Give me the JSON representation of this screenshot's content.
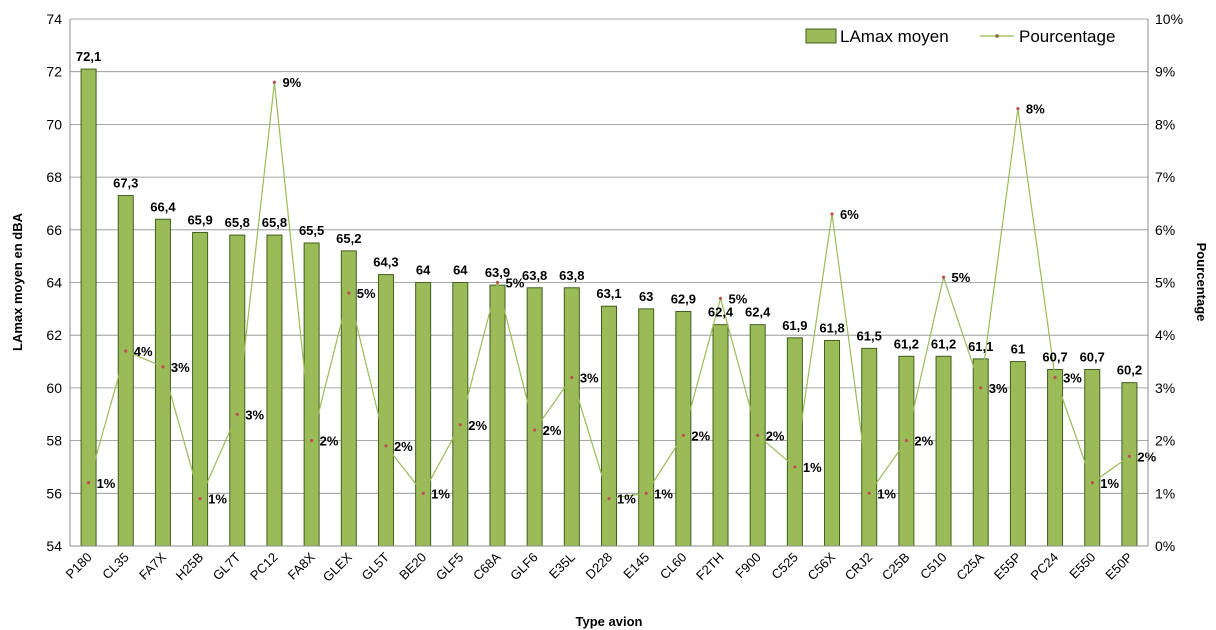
{
  "chart_data": {
    "type": "bar",
    "categories": [
      "P180",
      "CL35",
      "FA7X",
      "H25B",
      "GL7T",
      "PC12",
      "FA8X",
      "GLEX",
      "GL5T",
      "BE20",
      "GLF5",
      "C68A",
      "GLF6",
      "E35L",
      "D228",
      "E145",
      "CL60",
      "F2TH",
      "F900",
      "C525",
      "C56X",
      "CRJ2",
      "C25B",
      "C510",
      "C25A",
      "E55P",
      "PC24",
      "E550",
      "E50P"
    ],
    "series": [
      {
        "name": "LAmax moyen",
        "type": "bar",
        "axis": "left",
        "values": [
          72.1,
          67.3,
          66.4,
          65.9,
          65.8,
          65.8,
          65.5,
          65.2,
          64.3,
          64,
          64,
          63.9,
          63.8,
          63.8,
          63.1,
          63,
          62.9,
          62.4,
          62.4,
          61.9,
          61.8,
          61.5,
          61.2,
          61.2,
          61.1,
          61,
          60.7,
          60.7,
          60.2
        ],
        "labels": [
          "72,1",
          "67,3",
          "66,4",
          "65,9",
          "65,8",
          "65,8",
          "65,5",
          "65,2",
          "64,3",
          "64",
          "64",
          "63,9",
          "63,8",
          "63,8",
          "63,1",
          "63",
          "62,9",
          "62,4",
          "62,4",
          "61,9",
          "61,8",
          "61,5",
          "61,2",
          "61,2",
          "61,1",
          "61",
          "60,7",
          "60,7",
          "60,2"
        ],
        "color": "#9bbb59",
        "border": "#3f5f1f"
      },
      {
        "name": "Pourcentage",
        "type": "line",
        "axis": "right",
        "values": [
          1.2,
          3.7,
          3.4,
          0.9,
          2.5,
          8.8,
          2.0,
          4.8,
          1.9,
          1.0,
          2.3,
          5.0,
          2.2,
          3.2,
          0.9,
          1.0,
          2.1,
          4.7,
          2.1,
          1.5,
          6.3,
          1.0,
          2.0,
          5.1,
          3.0,
          8.3,
          3.2,
          1.2,
          1.7
        ],
        "labels": [
          "1%",
          "4%",
          "3%",
          "1%",
          "3%",
          "9%",
          "2%",
          "5%",
          "2%",
          "1%",
          "2%",
          "5%",
          "2%",
          "3%",
          "1%",
          "1%",
          "2%",
          "5%",
          "2%",
          "1%",
          "6%",
          "1%",
          "2%",
          "5%",
          "3%",
          "8%",
          "3%",
          "1%",
          "2%"
        ],
        "color": "#9bbb59",
        "marker_color": "#c0504d"
      }
    ],
    "xlabel": "Type avion",
    "ylabel": "LAmax moyen en dBA",
    "y2label": "Pourcentage",
    "ylim": [
      54,
      74
    ],
    "y2lim": [
      0,
      10
    ],
    "yticks": [
      "54",
      "56",
      "58",
      "60",
      "62",
      "64",
      "66",
      "68",
      "70",
      "72",
      "74"
    ],
    "y2ticks": [
      "0%",
      "1%",
      "2%",
      "3%",
      "4%",
      "5%",
      "6%",
      "7%",
      "8%",
      "9%",
      "10%"
    ],
    "grid": true,
    "legend": "top-right"
  }
}
